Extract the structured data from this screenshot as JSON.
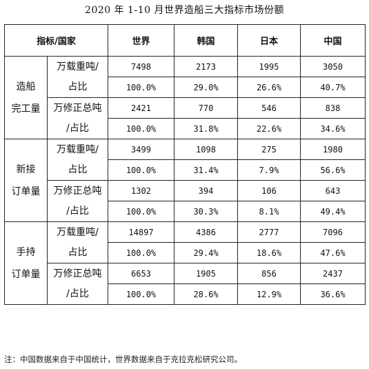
{
  "title": "2020 年 1-10 月世界造船三大指标市场份额",
  "header": {
    "indicator": "指标/国家",
    "cols": [
      "世界",
      "韩国",
      "日本",
      "中国"
    ]
  },
  "sections": [
    {
      "name_lines": [
        "造船",
        "完工量"
      ],
      "rows": [
        {
          "label_lines": [
            "万载重吨/",
            "占比"
          ],
          "values": [
            "7498",
            "2173",
            "1995",
            "3050"
          ],
          "shares": [
            "100.0%",
            "29.0%",
            "26.6%",
            "40.7%"
          ]
        },
        {
          "label_lines": [
            "万修正总吨",
            "/占比"
          ],
          "values": [
            "2421",
            "770",
            "546",
            "838"
          ],
          "shares": [
            "100.0%",
            "31.8%",
            "22.6%",
            "34.6%"
          ]
        }
      ]
    },
    {
      "name_lines": [
        "新接",
        "订单量"
      ],
      "rows": [
        {
          "label_lines": [
            "万载重吨/",
            "占比"
          ],
          "values": [
            "3499",
            "1098",
            "275",
            "1980"
          ],
          "shares": [
            "100.0%",
            "31.4%",
            "7.9%",
            "56.6%"
          ]
        },
        {
          "label_lines": [
            "万修正总吨",
            "/占比"
          ],
          "values": [
            "1302",
            "394",
            "106",
            "643"
          ],
          "shares": [
            "100.0%",
            "30.3%",
            "8.1%",
            "49.4%"
          ]
        }
      ]
    },
    {
      "name_lines": [
        "手持",
        "订单量"
      ],
      "rows": [
        {
          "label_lines": [
            "万载重吨/",
            "占比"
          ],
          "values": [
            "14897",
            "4386",
            "2777",
            "7096"
          ],
          "shares": [
            "100.0%",
            "29.4%",
            "18.6%",
            "47.6%"
          ]
        },
        {
          "label_lines": [
            "万修正总吨",
            "/占比"
          ],
          "values": [
            "6653",
            "1905",
            "856",
            "2437"
          ],
          "shares": [
            "100.0%",
            "28.6%",
            "12.9%",
            "36.6%"
          ]
        }
      ]
    }
  ],
  "note": "注：中国数据来自于中国统计，世界数据来自于克拉克松研究公司。"
}
